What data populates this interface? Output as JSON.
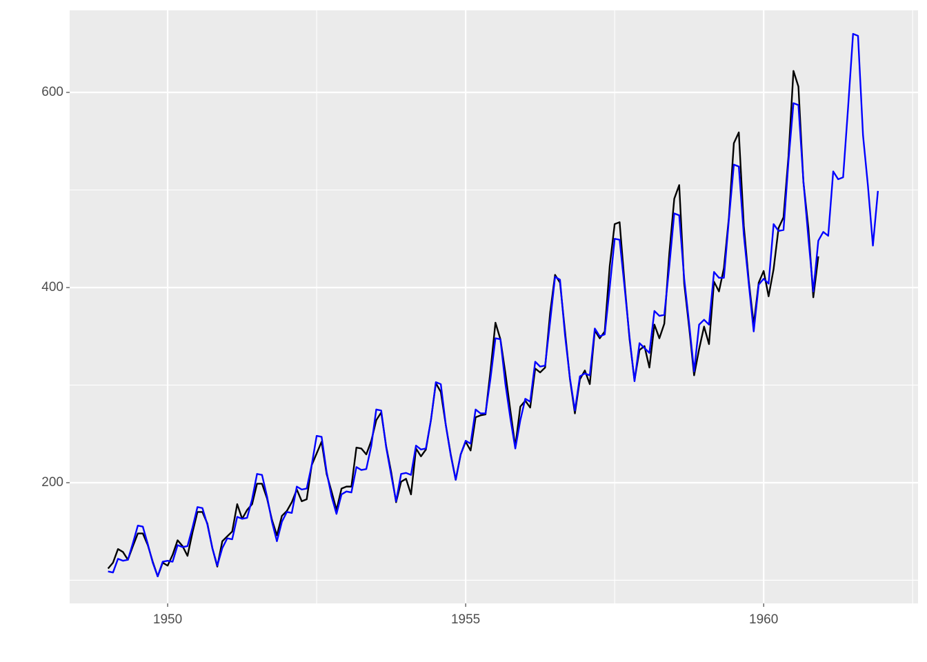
{
  "chart_data": {
    "type": "line",
    "x": [
      1949,
      1949.083,
      1949.167,
      1949.25,
      1949.333,
      1949.417,
      1949.5,
      1949.583,
      1949.667,
      1949.75,
      1949.833,
      1949.917,
      1950,
      1950.083,
      1950.167,
      1950.25,
      1950.333,
      1950.417,
      1950.5,
      1950.583,
      1950.667,
      1950.75,
      1950.833,
      1950.917,
      1951,
      1951.083,
      1951.167,
      1951.25,
      1951.333,
      1951.417,
      1951.5,
      1951.583,
      1951.667,
      1951.75,
      1951.833,
      1951.917,
      1952,
      1952.083,
      1952.167,
      1952.25,
      1952.333,
      1952.417,
      1952.5,
      1952.583,
      1952.667,
      1952.75,
      1952.833,
      1952.917,
      1953,
      1953.083,
      1953.167,
      1953.25,
      1953.333,
      1953.417,
      1953.5,
      1953.583,
      1953.667,
      1953.75,
      1953.833,
      1953.917,
      1954,
      1954.083,
      1954.167,
      1954.25,
      1954.333,
      1954.417,
      1954.5,
      1954.583,
      1954.667,
      1954.75,
      1954.833,
      1954.917,
      1955,
      1955.083,
      1955.167,
      1955.25,
      1955.333,
      1955.417,
      1955.5,
      1955.583,
      1955.667,
      1955.75,
      1955.833,
      1955.917,
      1956,
      1956.083,
      1956.167,
      1956.25,
      1956.333,
      1956.417,
      1956.5,
      1956.583,
      1956.667,
      1956.75,
      1956.833,
      1956.917,
      1957,
      1957.083,
      1957.167,
      1957.25,
      1957.333,
      1957.417,
      1957.5,
      1957.583,
      1957.667,
      1957.75,
      1957.833,
      1957.917,
      1958,
      1958.083,
      1958.167,
      1958.25,
      1958.333,
      1958.417,
      1958.5,
      1958.583,
      1958.667,
      1958.75,
      1958.833,
      1958.917,
      1959,
      1959.083,
      1959.167,
      1959.25,
      1959.333,
      1959.417,
      1959.5,
      1959.583,
      1959.667,
      1959.75,
      1959.833,
      1959.917,
      1960,
      1960.083,
      1960.167,
      1960.25,
      1960.333,
      1960.417,
      1960.5,
      1960.583,
      1960.667,
      1960.75,
      1960.833,
      1960.917,
      1961,
      1961.083,
      1961.167,
      1961.25,
      1961.333,
      1961.417,
      1961.5,
      1961.583,
      1961.667,
      1961.75,
      1961.833,
      1961.917
    ],
    "series": [
      {
        "color": "#000000",
        "values": [
          112,
          118,
          132,
          129,
          121,
          135,
          148,
          148,
          136,
          119,
          104,
          118,
          115,
          126,
          141,
          135,
          125,
          149,
          170,
          170,
          158,
          133,
          114,
          140,
          145,
          150,
          178,
          163,
          172,
          178,
          199,
          199,
          184,
          162,
          146,
          166,
          171,
          180,
          193,
          181,
          183,
          218,
          230,
          242,
          209,
          191,
          172,
          194,
          196,
          196,
          236,
          235,
          229,
          243,
          264,
          272,
          237,
          211,
          180,
          201,
          204,
          188,
          235,
          227,
          234,
          264,
          302,
          293,
          259,
          229,
          203,
          229,
          242,
          233,
          267,
          269,
          270,
          315,
          364,
          347,
          312,
          274,
          237,
          278,
          284,
          277,
          317,
          313,
          318,
          374,
          413,
          405,
          355,
          306,
          271,
          306,
          315,
          301,
          356,
          348,
          355,
          422,
          465,
          467,
          404,
          347,
          305,
          336,
          340,
          318,
          362,
          348,
          363,
          435,
          491,
          505,
          404,
          359,
          310,
          337,
          360,
          342,
          406,
          396,
          420,
          472,
          548,
          559,
          463,
          407,
          362,
          405,
          417,
          391,
          419,
          461,
          472,
          535,
          622,
          606,
          508,
          461,
          390,
          432,
          null,
          null,
          null,
          null,
          null,
          null,
          null,
          null,
          null,
          null,
          null,
          null
        ]
      },
      {
        "color": "#0000ff",
        "values": [
          109,
          108,
          122,
          120,
          121,
          138,
          156,
          155,
          137,
          118,
          104,
          119,
          120,
          119,
          136,
          134,
          135,
          154,
          175,
          174,
          157,
          133,
          115,
          133,
          143,
          142,
          165,
          163,
          164,
          183,
          209,
          208,
          186,
          160,
          140,
          160,
          170,
          169,
          196,
          193,
          194,
          218,
          248,
          247,
          211,
          186,
          168,
          188,
          191,
          190,
          216,
          213,
          214,
          238,
          275,
          274,
          236,
          208,
          181,
          209,
          210,
          208,
          238,
          234,
          235,
          264,
          303,
          301,
          259,
          228,
          203,
          229,
          243,
          240,
          275,
          271,
          271,
          307,
          348,
          347,
          301,
          266,
          235,
          264,
          286,
          283,
          324,
          319,
          320,
          365,
          411,
          408,
          351,
          307,
          274,
          309,
          312,
          310,
          358,
          350,
          352,
          400,
          450,
          449,
          400,
          349,
          304,
          343,
          338,
          333,
          376,
          371,
          372,
          422,
          476,
          474,
          409,
          363,
          314,
          362,
          367,
          362,
          416,
          410,
          410,
          470,
          526,
          524,
          454,
          404,
          355,
          403,
          409,
          404,
          465,
          458,
          459,
          530,
          589,
          587,
          509,
          451,
          396,
          448,
          457,
          453,
          519,
          511,
          513,
          585,
          660,
          658,
          556,
          504,
          443,
          499
        ]
      }
    ],
    "xlim": [
      1948.356,
      1962.59
    ],
    "ylim": [
      76.3,
      684.1
    ],
    "xticks": [
      1950,
      1955,
      1960
    ],
    "yticks": [
      200,
      400,
      600
    ],
    "x_minor_grid": [
      1952.5,
      1957.5,
      1962.5
    ],
    "y_minor_grid": [
      100,
      300,
      500
    ],
    "grid": true,
    "background": "#ebebeb"
  }
}
